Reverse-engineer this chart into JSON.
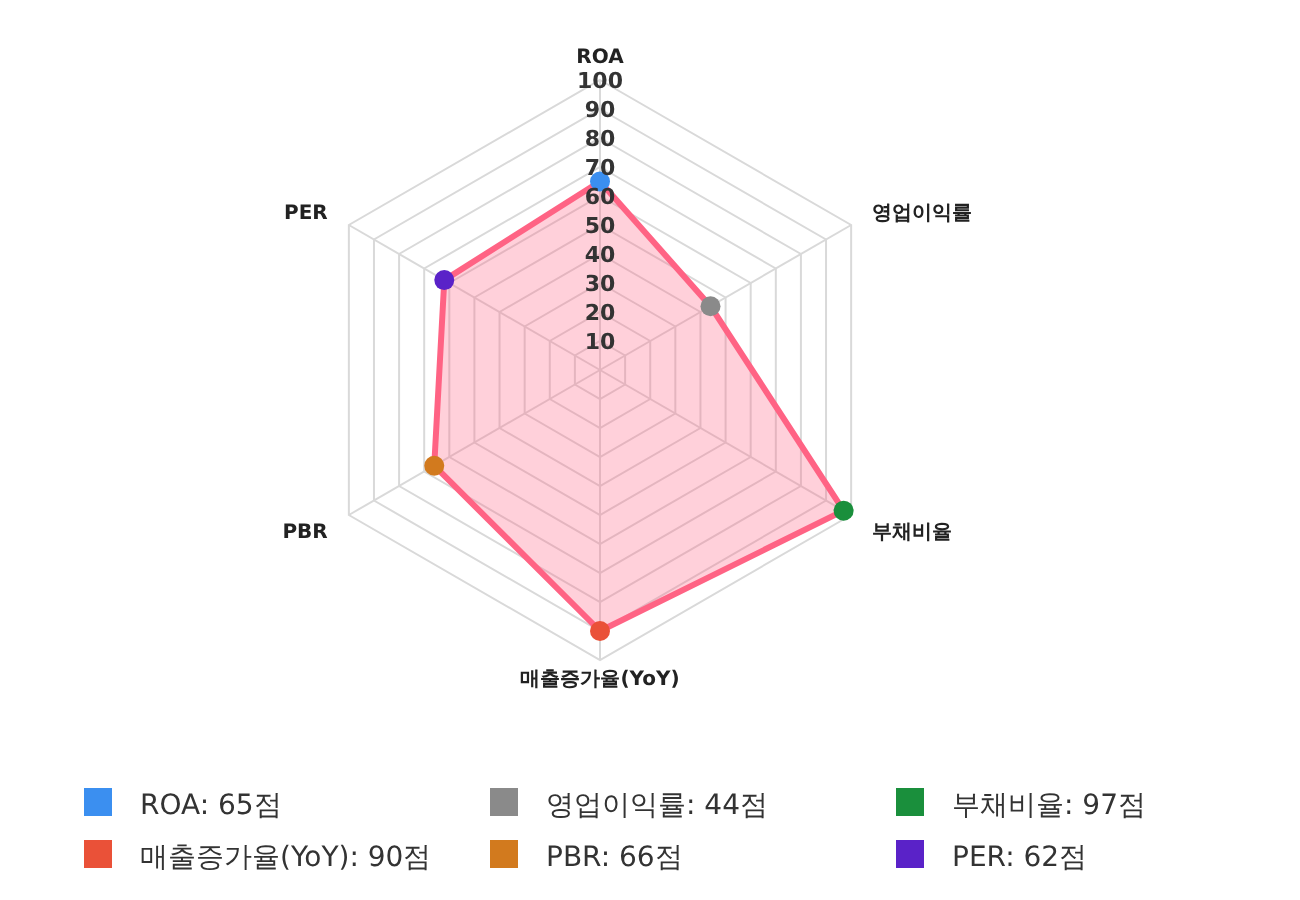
{
  "chart_data": {
    "type": "radar",
    "categories": [
      "ROA",
      "영업이익률",
      "부채비율",
      "매출증가율(YoY)",
      "PBR",
      "PER"
    ],
    "series": [
      {
        "color": "#ff6384",
        "values": [
          65,
          44,
          97,
          90,
          66,
          62
        ],
        "colors": [
          "#3b8ff0",
          "#8a8a8a",
          "#1a8f3c",
          "#ea5138",
          "#d27a1e",
          "#5a22c8"
        ]
      }
    ],
    "annotations": [
      "ROA: 65점",
      "영업이익률: 44점",
      "부채비율: 97점",
      "매출증가율(YoY): 90점",
      "PBR: 66점",
      "PER: 62점"
    ],
    "ylim": [
      0,
      100
    ],
    "yticks": [
      10,
      20,
      30,
      40,
      50,
      60,
      70,
      80,
      90,
      100
    ],
    "grid": true,
    "marker": "circle",
    "line_style": "solid"
  }
}
